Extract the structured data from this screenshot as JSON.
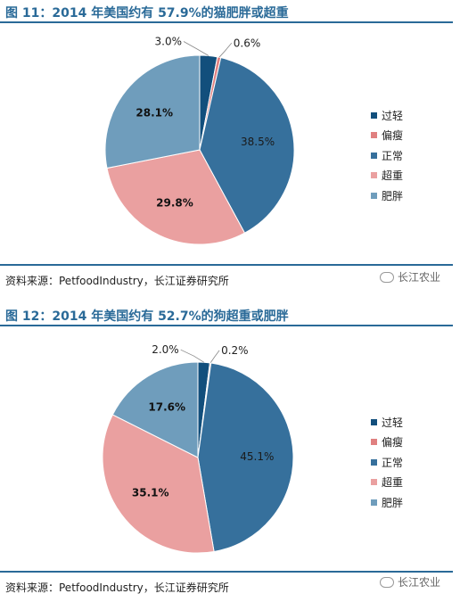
{
  "chart_data": [
    {
      "type": "pie",
      "title": "图 11：2014 年美国约有 57.9%的猫肥胖或超重",
      "source": "资料来源：PetfoodIndustry，长江证券研究所",
      "categories": [
        "过轻",
        "偏瘦",
        "正常",
        "超重",
        "肥胖"
      ],
      "values": [
        3.0,
        0.6,
        38.5,
        29.8,
        28.1
      ],
      "value_labels": [
        "3.0%",
        "0.6%",
        "38.5%",
        "29.8%",
        "28.1%"
      ],
      "colors": [
        "#124f7c",
        "#e08080",
        "#36709c",
        "#eaa0a0",
        "#6f9dbc"
      ],
      "start_angle_deg": 0,
      "direction": "clockwise",
      "legend_position": "right"
    },
    {
      "type": "pie",
      "title": "图 12：2014 年美国约有 52.7%的狗超重或肥胖",
      "source": "资料来源：PetfoodIndustry，长江证券研究所",
      "categories": [
        "过轻",
        "偏瘦",
        "正常",
        "超重",
        "肥胖"
      ],
      "values": [
        2.0,
        0.2,
        45.1,
        35.1,
        17.6
      ],
      "value_labels": [
        "2.0%",
        "0.2%",
        "45.1%",
        "35.1%",
        "17.6%"
      ],
      "colors": [
        "#124f7c",
        "#e08080",
        "#36709c",
        "#eaa0a0",
        "#6f9dbc"
      ],
      "start_angle_deg": 0,
      "direction": "clockwise",
      "legend_position": "right"
    }
  ],
  "watermark": {
    "icon": "wechat-icon",
    "text": "长江农业"
  }
}
